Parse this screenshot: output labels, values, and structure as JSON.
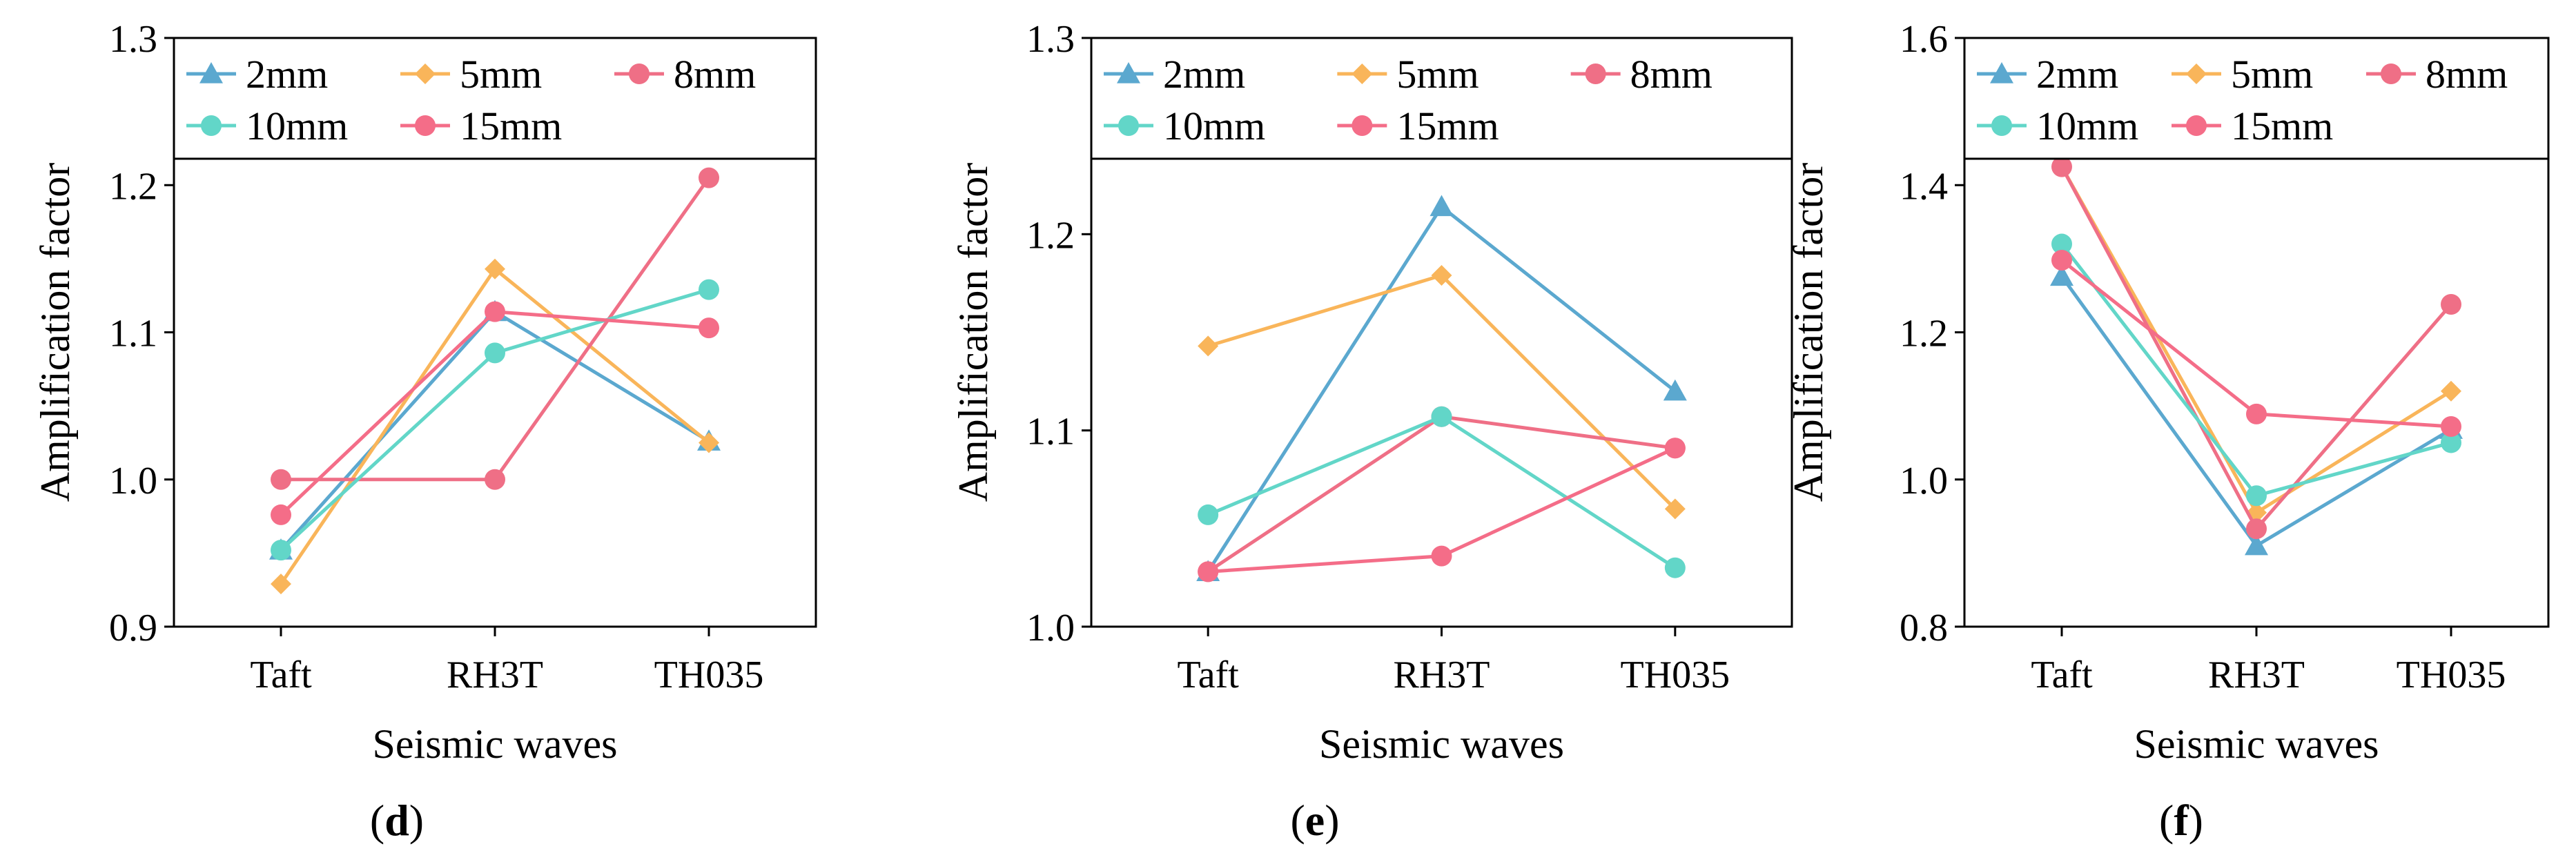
{
  "colors": {
    "2mm": "#5ba8cf",
    "5mm": "#f9b55a",
    "8mm": "#ef6f86",
    "10mm": "#62d6c8",
    "15mm": "#f46d88"
  },
  "chart_data": [
    {
      "type": "line",
      "panel": "(d)",
      "panel_letter": "d",
      "xlabel": "Seismic waves",
      "ylabel": "Amplification factor",
      "categories": [
        "Taft",
        "RH3T",
        "TH035"
      ],
      "ylim": [
        0.9,
        1.3
      ],
      "yticks": [
        "0.9",
        "1.0",
        "1.1",
        "1.2",
        "1.3"
      ],
      "series": [
        {
          "name": "2mm",
          "marker": "triangle",
          "values": [
            0.952,
            1.114,
            1.026
          ]
        },
        {
          "name": "5mm",
          "marker": "diamond",
          "values": [
            0.929,
            1.143,
            1.025
          ]
        },
        {
          "name": "8mm",
          "marker": "circle",
          "values": [
            1.0,
            1.0,
            1.205
          ]
        },
        {
          "name": "10mm",
          "marker": "circle",
          "values": [
            0.952,
            1.086,
            1.129
          ]
        },
        {
          "name": "15mm",
          "marker": "circle",
          "values": [
            0.976,
            1.114,
            1.103
          ]
        }
      ]
    },
    {
      "type": "line",
      "panel": "(e)",
      "panel_letter": "e",
      "xlabel": "Seismic waves",
      "ylabel": "Amplification factor",
      "categories": [
        "Taft",
        "RH3T",
        "TH035"
      ],
      "ylim": [
        1.0,
        1.3
      ],
      "yticks": [
        "1.0",
        "1.1",
        "1.2",
        "1.3"
      ],
      "series": [
        {
          "name": "2mm",
          "marker": "triangle",
          "values": [
            1.028,
            1.214,
            1.12
          ]
        },
        {
          "name": "5mm",
          "marker": "diamond",
          "values": [
            1.143,
            1.179,
            1.06
          ]
        },
        {
          "name": "8mm",
          "marker": "circle",
          "values": [
            1.028,
            1.107,
            1.091
          ]
        },
        {
          "name": "10mm",
          "marker": "circle",
          "values": [
            1.057,
            1.107,
            1.03
          ]
        },
        {
          "name": "15mm",
          "marker": "circle",
          "values": [
            1.028,
            1.036,
            1.091
          ]
        }
      ]
    },
    {
      "type": "line",
      "panel": "(f)",
      "panel_letter": "f",
      "xlabel": "Seismic waves",
      "ylabel": "Amplification factor",
      "categories": [
        "Taft",
        "RH3T",
        "TH035"
      ],
      "ylim": [
        0.8,
        1.6
      ],
      "yticks": [
        "0.8",
        "1.0",
        "1.2",
        "1.4",
        "1.6"
      ],
      "series": [
        {
          "name": "2mm",
          "marker": "triangle",
          "values": [
            1.276,
            0.91,
            1.068
          ]
        },
        {
          "name": "5mm",
          "marker": "diamond",
          "values": [
            1.425,
            0.955,
            1.12
          ]
        },
        {
          "name": "8mm",
          "marker": "circle",
          "values": [
            1.425,
            0.933,
            1.238
          ]
        },
        {
          "name": "10mm",
          "marker": "circle",
          "values": [
            1.32,
            0.978,
            1.05
          ]
        },
        {
          "name": "15mm",
          "marker": "circle",
          "values": [
            1.298,
            1.089,
            1.072
          ]
        }
      ]
    }
  ]
}
